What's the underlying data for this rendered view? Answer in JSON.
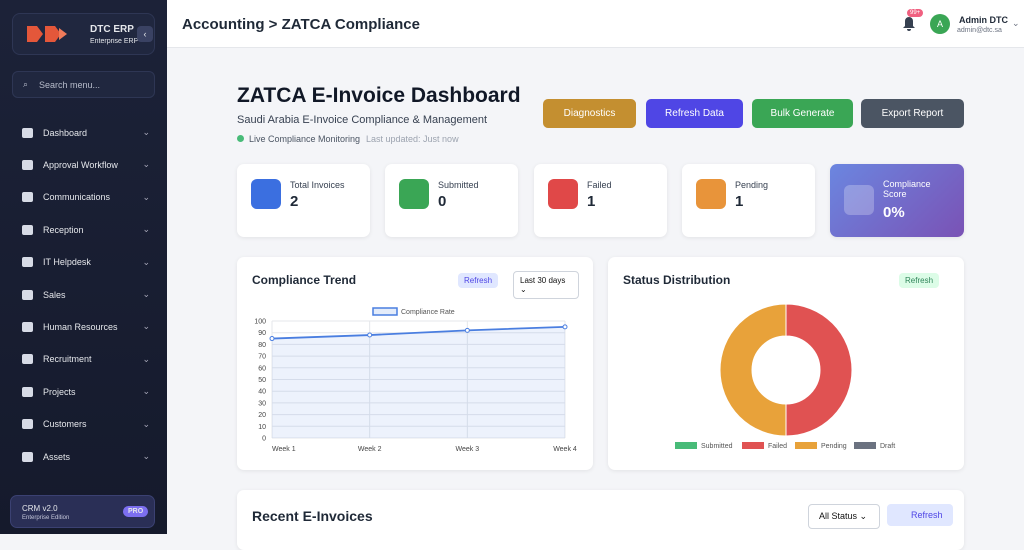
{
  "sidebar": {
    "brand": "DTC ERP",
    "edition": "Enterprise ERP",
    "search_placeholder": "Search menu...",
    "menu": [
      "Dashboard",
      "Approval Workflow",
      "Communications",
      "Reception",
      "IT Helpdesk",
      "Sales",
      "Human Resources",
      "Recruitment",
      "Projects",
      "Customers",
      "Assets"
    ],
    "footer": {
      "version": "CRM v2.0",
      "edition": "Enterprise Edition",
      "badge": "PRO"
    }
  },
  "header": {
    "breadcrumb": "Accounting > ZATCA Compliance",
    "notifications": "99+",
    "avatar": "A",
    "user": "Admin DTC",
    "email": "admin@dtc.sa"
  },
  "dashboard": {
    "title": "ZATCA E-Invoice Dashboard",
    "subtitle": "Saudi Arabia E-Invoice Compliance & Management",
    "status": "Live Compliance Monitoring",
    "last_updated": "Last updated: Just now",
    "buttons": [
      "Diagnostics",
      "Refresh Data",
      "Bulk Generate",
      "Export Report"
    ],
    "stats": [
      {
        "label": "Total Invoices",
        "value": "2"
      },
      {
        "label": "Submitted",
        "value": "0"
      },
      {
        "label": "Failed",
        "value": "1"
      },
      {
        "label": "Pending",
        "value": "1"
      },
      {
        "label": "Compliance Score",
        "value": "0%"
      }
    ]
  },
  "panels": {
    "trend": {
      "refresh": "Refresh",
      "range": "Last 30 days"
    },
    "status": {
      "refresh": "Refresh"
    },
    "recent": {
      "title": "Recent E-Invoices",
      "filter": "All Status",
      "refresh": "Refresh"
    }
  },
  "chart_data": [
    {
      "type": "line",
      "title": "Compliance Trend",
      "categories": [
        "Week 1",
        "Week 2",
        "Week 3",
        "Week 4"
      ],
      "series": [
        {
          "name": "Compliance Rate",
          "color": "#4a7ee0",
          "values": [
            85,
            88,
            92,
            95
          ]
        }
      ],
      "ylim": [
        0,
        100
      ],
      "yticks": [
        0,
        10,
        20,
        30,
        40,
        50,
        60,
        70,
        80,
        90,
        100
      ],
      "grid": true,
      "legend": "top"
    },
    {
      "type": "donut",
      "title": "Status Distribution",
      "categories": [
        "Submitted",
        "Failed",
        "Pending",
        "Draft"
      ],
      "values": [
        0,
        1,
        1,
        0
      ],
      "colors": [
        "#48bb78",
        "#e05252",
        "#e8a23a",
        "#6b7280"
      ],
      "legend": "bottom"
    }
  ]
}
